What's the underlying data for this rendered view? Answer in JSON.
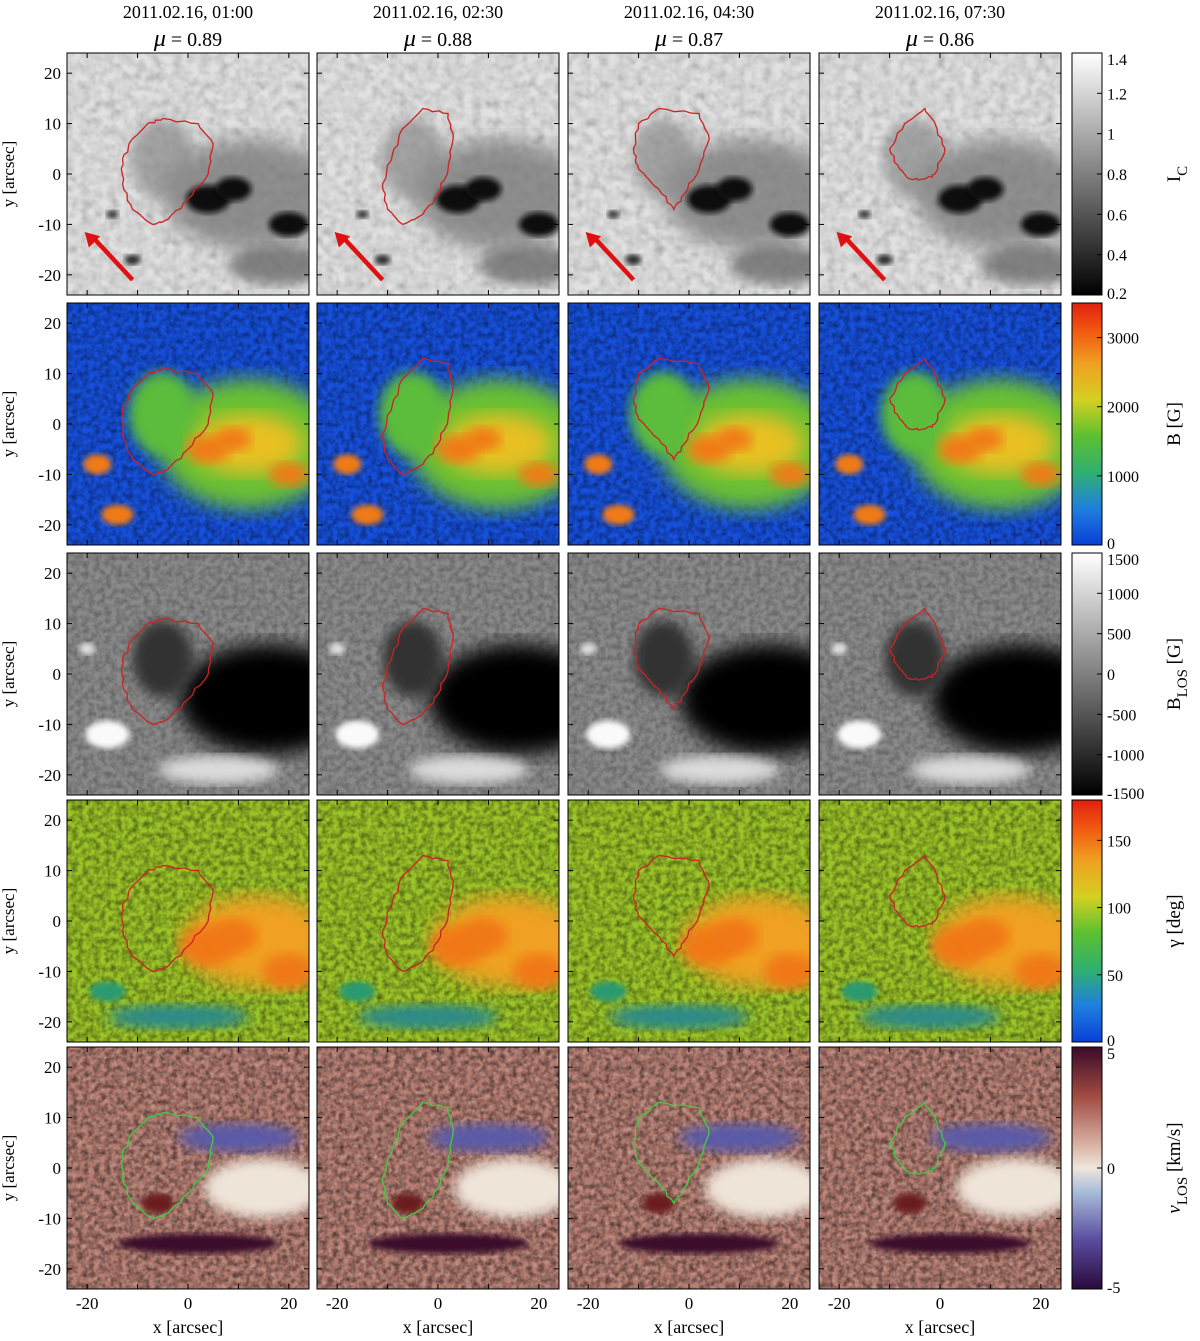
{
  "columns": [
    {
      "date": "2011.02.16, 01:00",
      "mu": "0.89"
    },
    {
      "date": "2011.02.16, 02:30",
      "mu": "0.88"
    },
    {
      "date": "2011.02.16, 04:30",
      "mu": "0.87"
    },
    {
      "date": "2011.02.16, 07:30",
      "mu": "0.86"
    }
  ],
  "mu_label": "μ = ",
  "rows": [
    {
      "quantity": "Ic",
      "colorbar_label": "I_C",
      "colorbar_label_main": "I",
      "colorbar_label_sub": "C",
      "colorbar_unit": "",
      "colormap": "gray",
      "range": [
        0.2,
        1.4
      ],
      "ticks": [
        "1.4",
        "1.2",
        "1",
        "0.8",
        "0.6",
        "0.4",
        "0.2"
      ],
      "contour_color": "#cc2222",
      "arrow": true
    },
    {
      "quantity": "B",
      "colorbar_label": "B [G]",
      "colorbar_label_main": "B [G]",
      "colorbar_label_sub": "",
      "colorbar_unit": "",
      "colormap": "jet",
      "range": [
        0,
        3500
      ],
      "ticks": [
        "3000",
        "2000",
        "1000",
        "0"
      ],
      "contour_color": "#cc2222",
      "arrow": false
    },
    {
      "quantity": "B_LOS",
      "colorbar_label": "B_LOS [G]",
      "colorbar_label_main": "B",
      "colorbar_label_sub": "LOS",
      "colorbar_unit": "[G]",
      "colormap": "gray",
      "range": [
        -1500,
        1500
      ],
      "ticks": [
        "1500",
        "1000",
        "500",
        "0",
        "-500",
        "-1000",
        "-1500"
      ],
      "contour_color": "#cc2222",
      "arrow": false
    },
    {
      "quantity": "gamma",
      "colorbar_label": "γ [deg]",
      "colorbar_label_main": "γ [deg]",
      "colorbar_label_sub": "",
      "colorbar_unit": "",
      "colormap": "jet",
      "range": [
        0,
        180
      ],
      "ticks": [
        "150",
        "100",
        "50",
        "0"
      ],
      "contour_color": "#cc2222",
      "arrow": false
    },
    {
      "quantity": "v_LOS",
      "colorbar_label": "v_LOS [km/s]",
      "colorbar_label_main": "v",
      "colorbar_label_sub": "LOS",
      "colorbar_unit": "[km/s]",
      "colormap": "twilight",
      "range": [
        -5,
        5
      ],
      "ticks": [
        "5",
        "0",
        "-5"
      ],
      "contour_color": "#44cc44",
      "arrow": false
    }
  ],
  "y_axis_label": "y [arcsec]",
  "x_axis_label": "x [arcsec]",
  "y_ticks": [
    "20",
    "10",
    "0",
    "-10",
    "-20"
  ],
  "x_ticks": [
    "-20",
    "0",
    "20"
  ],
  "colors": {
    "contour_red": "#cc2222",
    "contour_green": "#44cc44",
    "arrow_red": "#e01010"
  }
}
